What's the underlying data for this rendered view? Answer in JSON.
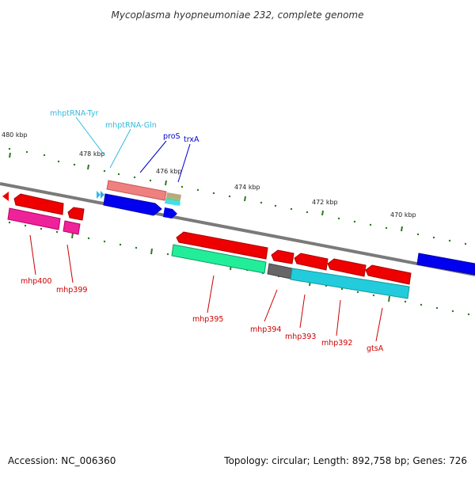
{
  "title": "Mycoplasma hyopneumoniae 232, complete genome",
  "footer": {
    "accession": "Accession: NC_006360",
    "summary": "Topology: circular; Length: 892,758 bp; Genes: 726"
  },
  "colors": {
    "backbone": "#7a7a7a",
    "tick": "#2a7a1e",
    "trna_label": "#33bbdd",
    "blue_label": "#0000cc",
    "red_label": "#cc0000"
  },
  "ticks": [
    "480 kbp",
    "478 kbp",
    "476 kbp",
    "474 kbp",
    "472 kbp",
    "470 kbp"
  ],
  "labels": {
    "mhptRNA_Tyr": "mhptRNA-Tyr",
    "mhptRNA_Gln": "mhptRNA-Gln",
    "proS": "proS",
    "trxA": "trxA",
    "mhp400": "mhp400",
    "mhp399": "mhp399",
    "mhp395": "mhp395",
    "mhp394": "mhp394",
    "mhp393": "mhp393",
    "mhp392": "mhp392",
    "gtsA": "gtsA"
  }
}
